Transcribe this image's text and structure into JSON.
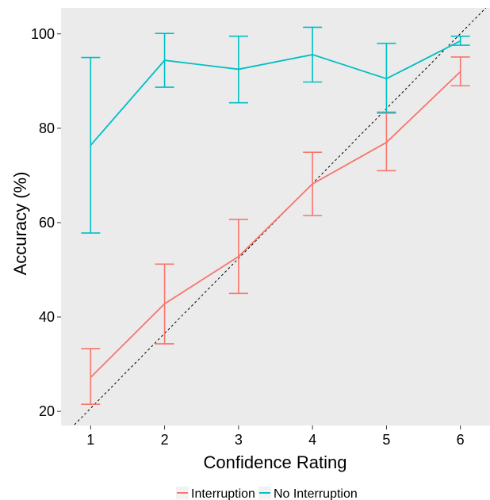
{
  "chart_data": {
    "type": "line",
    "title": "",
    "xlabel": "Confidence Rating",
    "ylabel": "Accuracy (%)",
    "x": [
      1,
      2,
      3,
      4,
      5,
      6
    ],
    "xlim": [
      0.6,
      6.4
    ],
    "ylim": [
      17,
      105.5
    ],
    "xticks": [
      1,
      2,
      3,
      4,
      5,
      6
    ],
    "yticks": [
      20,
      40,
      60,
      80,
      100
    ],
    "grid": false,
    "background": "#ebebeb",
    "legend_position": "bottom",
    "reference_line": {
      "style": "dashed",
      "color": "#000000",
      "from": [
        0.6,
        14.3
      ],
      "to": [
        6.4,
        106.4
      ]
    },
    "series": [
      {
        "name": "Interruption",
        "color": "#f8766d",
        "values": [
          27.2,
          42.8,
          52.8,
          68.2,
          77.0,
          92.0
        ],
        "lower": [
          21.5,
          34.3,
          45.0,
          61.5,
          71.0,
          89.0
        ],
        "upper": [
          33.3,
          51.2,
          60.7,
          74.9,
          83.2,
          95.1
        ]
      },
      {
        "name": "No Interruption",
        "color": "#00bfc4",
        "values": [
          76.4,
          94.4,
          92.5,
          95.6,
          90.5,
          98.5
        ],
        "lower": [
          57.8,
          88.7,
          85.4,
          89.8,
          83.4,
          97.6
        ],
        "upper": [
          95.0,
          100.1,
          99.5,
          101.4,
          98.0,
          99.5
        ]
      }
    ]
  }
}
